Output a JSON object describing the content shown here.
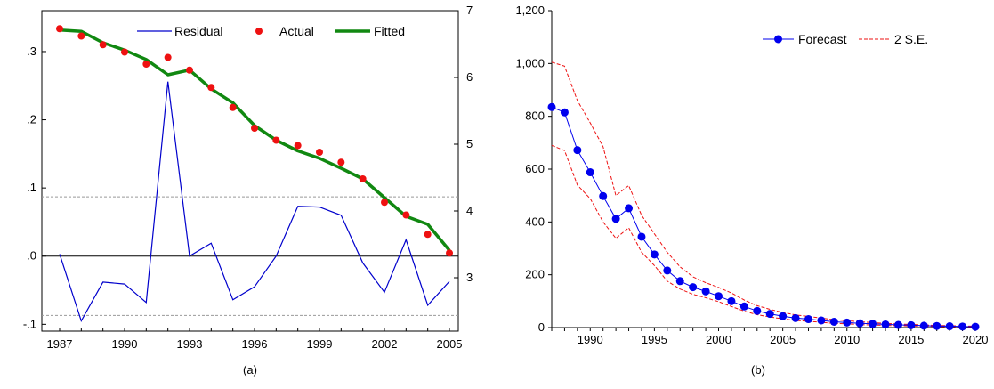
{
  "chart_data": [
    {
      "type": "line",
      "panel_label": "(a)",
      "x": [
        1987,
        1988,
        1989,
        1990,
        1991,
        1992,
        1993,
        1994,
        1995,
        1996,
        1997,
        1998,
        1999,
        2000,
        2001,
        2002,
        2003,
        2004,
        2005
      ],
      "xticks": [
        1987,
        1990,
        1993,
        1996,
        1999,
        2002,
        2005
      ],
      "left_axis": {
        "ylim": [
          -0.11,
          0.36
        ],
        "ticks": [
          -0.1,
          0.0,
          0.1,
          0.2,
          0.3
        ],
        "tick_labels": [
          "-.1",
          ".0",
          ".1",
          ".2",
          ".3"
        ]
      },
      "right_axis": {
        "ylim": [
          2.2,
          7.0
        ],
        "ticks": [
          3,
          4,
          5,
          6,
          7
        ],
        "tick_labels": [
          "3",
          "4",
          "5",
          "6",
          "7"
        ]
      },
      "reference_lines": {
        "zero": 0.0,
        "upper": 0.087,
        "lower": -0.087
      },
      "series": [
        {
          "name": "Residual",
          "axis": "left",
          "style": "line",
          "color": "#0000cc",
          "values": [
            0.003,
            -0.095,
            -0.038,
            -0.041,
            -0.068,
            0.256,
            0.0,
            0.019,
            -0.064,
            -0.045,
            0.0,
            0.073,
            0.072,
            0.06,
            -0.01,
            -0.053,
            0.024,
            -0.072,
            -0.037
          ]
        },
        {
          "name": "Actual",
          "axis": "right",
          "style": "marker",
          "color": "#ee1111",
          "values": [
            6.73,
            6.62,
            6.49,
            6.38,
            6.2,
            6.3,
            6.11,
            5.85,
            5.55,
            5.24,
            5.06,
            4.98,
            4.88,
            4.73,
            4.48,
            4.13,
            3.94,
            3.65,
            3.37
          ]
        },
        {
          "name": "Fitted",
          "axis": "right",
          "style": "thick-line",
          "color": "#118811",
          "values": [
            6.71,
            6.69,
            6.52,
            6.41,
            6.27,
            6.04,
            6.11,
            5.83,
            5.62,
            5.28,
            5.06,
            4.9,
            4.79,
            4.64,
            4.48,
            4.2,
            3.92,
            3.8,
            3.41
          ]
        }
      ]
    },
    {
      "type": "line",
      "panel_label": "(b)",
      "x": [
        1987,
        1988,
        1989,
        1990,
        1991,
        1992,
        1993,
        1994,
        1995,
        1996,
        1997,
        1998,
        1999,
        2000,
        2001,
        2002,
        2003,
        2004,
        2005,
        2006,
        2007,
        2008,
        2009,
        2010,
        2011,
        2012,
        2013,
        2014,
        2015,
        2016,
        2017,
        2018,
        2019,
        2020
      ],
      "xlim": [
        1987,
        2020
      ],
      "xticks": [
        1990,
        1995,
        2000,
        2005,
        2010,
        2015,
        2020
      ],
      "ylim": [
        0,
        1200
      ],
      "yticks": [
        0,
        200,
        400,
        600,
        800,
        1000,
        1200
      ],
      "ytick_labels": [
        "0",
        "200",
        "400",
        "600",
        "800",
        "1,000",
        "1,200"
      ],
      "series": [
        {
          "name": "Forecast",
          "style": "line-marker",
          "color": "#0000ee",
          "values": [
            835,
            815,
            672,
            588,
            498,
            412,
            452,
            344,
            277,
            216,
            176,
            153,
            137,
            119,
            100,
            80,
            63,
            52,
            43,
            36,
            32,
            27,
            22,
            19,
            16,
            14,
            12,
            10,
            9,
            7,
            6,
            5,
            4,
            3
          ]
        },
        {
          "name": "2 S.E.",
          "style": "dashed",
          "color": "#ee1111",
          "role": "upper",
          "values": [
            1005,
            990,
            860,
            775,
            685,
            500,
            538,
            425,
            355,
            285,
            230,
            192,
            170,
            152,
            131,
            104,
            83,
            69,
            57,
            48,
            42,
            36,
            30,
            26,
            22,
            19,
            16,
            13,
            12,
            10,
            8,
            7,
            6,
            5
          ]
        },
        {
          "name": "2 S.E.",
          "style": "dashed",
          "color": "#ee1111",
          "role": "lower",
          "values": [
            690,
            670,
            540,
            488,
            400,
            338,
            378,
            285,
            235,
            176,
            146,
            126,
            113,
            98,
            80,
            62,
            49,
            40,
            33,
            27,
            24,
            20,
            16,
            14,
            11,
            10,
            8,
            7,
            6,
            5,
            4,
            3,
            3,
            2
          ]
        }
      ]
    }
  ]
}
